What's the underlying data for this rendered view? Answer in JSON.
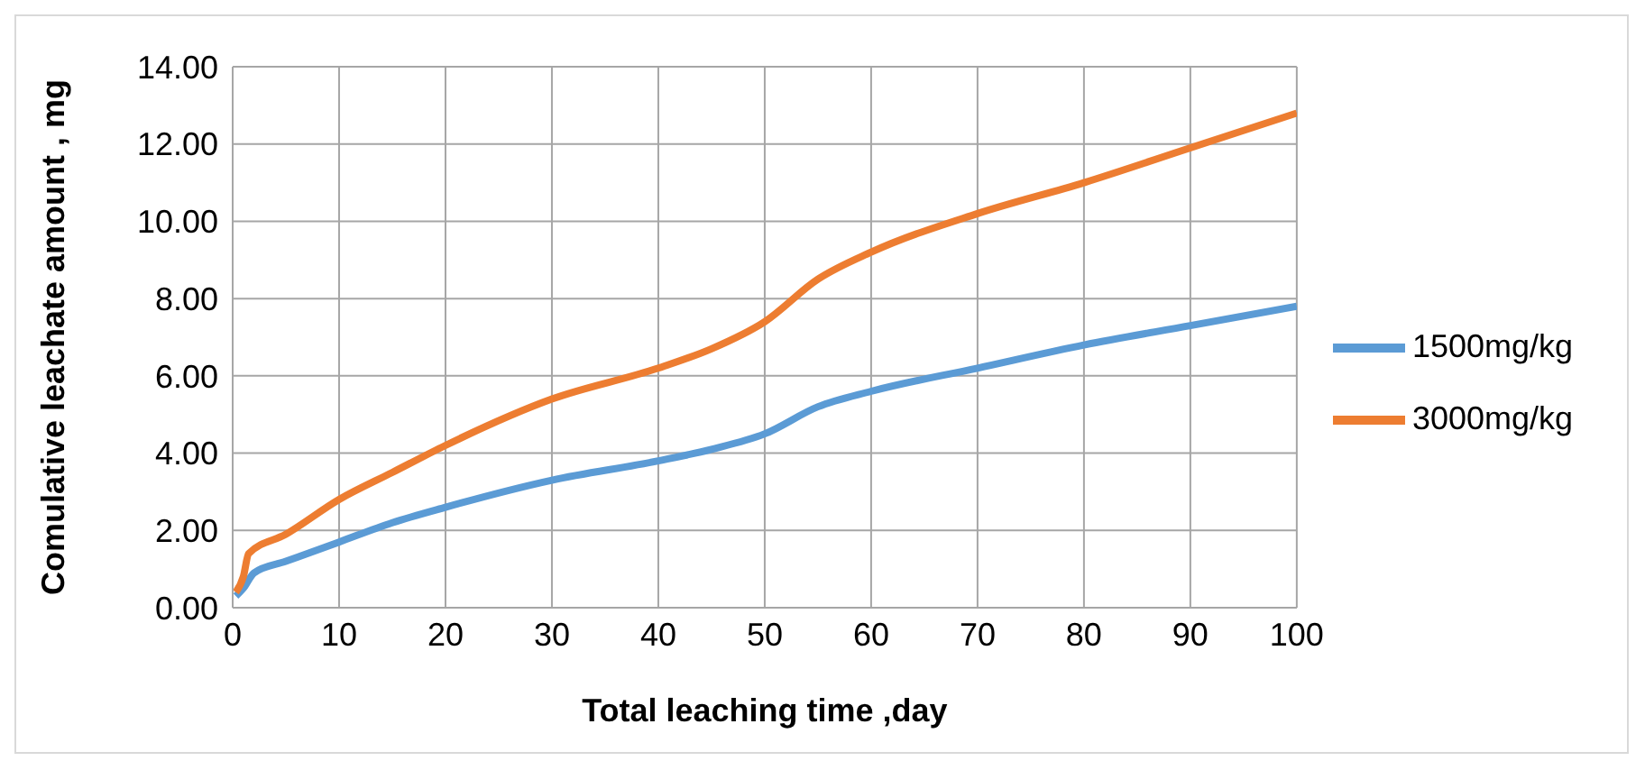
{
  "chart_data": {
    "type": "line",
    "xlabel": "Total leaching time ,day",
    "ylabel": "Comulative leachate amount , mg",
    "xlim": [
      0,
      100
    ],
    "xticks": [
      0,
      10,
      20,
      30,
      40,
      50,
      60,
      70,
      80,
      90,
      100
    ],
    "ylim": [
      0,
      14
    ],
    "yticks": [
      {
        "value": 0,
        "label": "0.00"
      },
      {
        "value": 2,
        "label": "2.00"
      },
      {
        "value": 4,
        "label": "4.00"
      },
      {
        "value": 6,
        "label": "6.00"
      },
      {
        "value": 8,
        "label": "8.00"
      },
      {
        "value": 10,
        "label": "10.00"
      },
      {
        "value": 12,
        "label": "12.00"
      },
      {
        "value": 14,
        "label": "14.00"
      }
    ],
    "grid": true,
    "legend": "right",
    "marker": "none",
    "line_style": "solid",
    "series": [
      {
        "name": "1500mg/kg",
        "color": "#5b9bd5",
        "x": [
          0.3,
          1,
          2,
          5,
          10,
          15,
          20,
          30,
          40,
          45,
          50,
          55,
          60,
          70,
          80,
          90,
          100
        ],
        "values": [
          0.3,
          0.5,
          0.9,
          1.2,
          1.7,
          2.2,
          2.6,
          3.3,
          3.8,
          4.1,
          4.5,
          5.2,
          5.6,
          6.2,
          6.8,
          7.3,
          7.8
        ]
      },
      {
        "name": "3000mg/kg",
        "color": "#ed7d31",
        "x": [
          0.3,
          1,
          1.5,
          5,
          10,
          15,
          20,
          30,
          40,
          45,
          50,
          55,
          60,
          70,
          80,
          90,
          100
        ],
        "values": [
          0.4,
          0.8,
          1.4,
          1.9,
          2.8,
          3.5,
          4.2,
          5.4,
          6.2,
          6.7,
          7.4,
          8.5,
          9.2,
          10.2,
          11.0,
          11.9,
          12.8
        ]
      }
    ]
  }
}
